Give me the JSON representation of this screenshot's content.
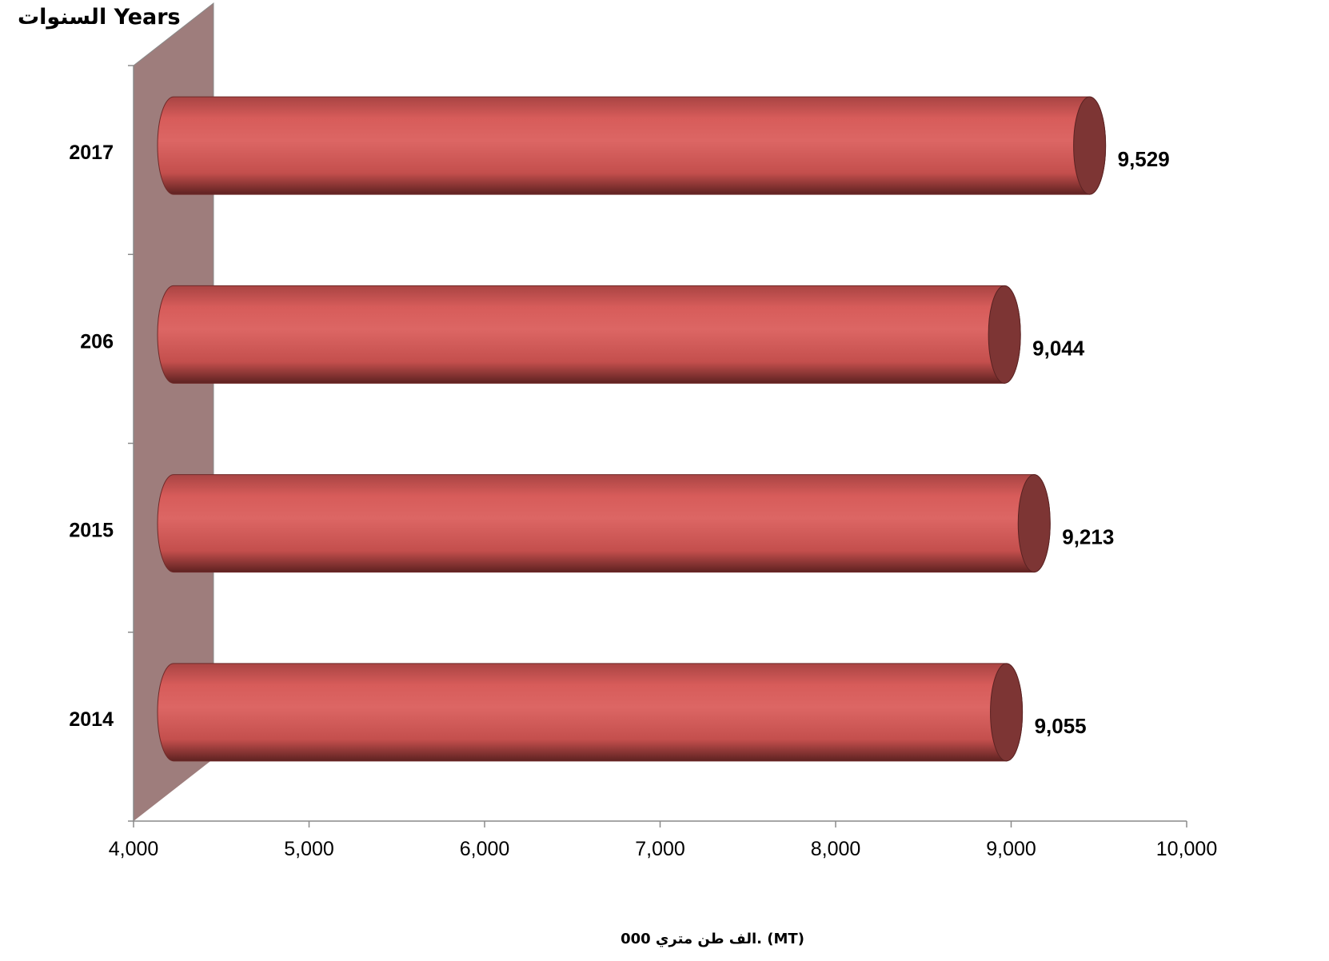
{
  "chart_data": {
    "type": "bar",
    "orientation": "horizontal",
    "style": "3d-cylinder",
    "ylabel": "السنوات Years",
    "xlabel": "الف طن متري  000. (MT)",
    "categories": [
      "2014",
      "2015",
      "206",
      "2017"
    ],
    "values": [
      9055,
      9213,
      9044,
      9529
    ],
    "data_labels": [
      "9,055",
      "9,213",
      "9,044",
      "9,529"
    ],
    "xlim": [
      4000,
      10000
    ],
    "xticks": [
      4000,
      5000,
      6000,
      7000,
      8000,
      9000,
      10000
    ],
    "xtick_labels": [
      "4,000",
      "5,000",
      "6,000",
      "7,000",
      "8,000",
      "9,000",
      "10,000"
    ],
    "grid": false,
    "legend": "none",
    "colors": {
      "bar": "#d35a58",
      "bar_dark": "#8b3433",
      "bar_cap": "#7d3534",
      "wall": "#9e7d7c"
    }
  }
}
